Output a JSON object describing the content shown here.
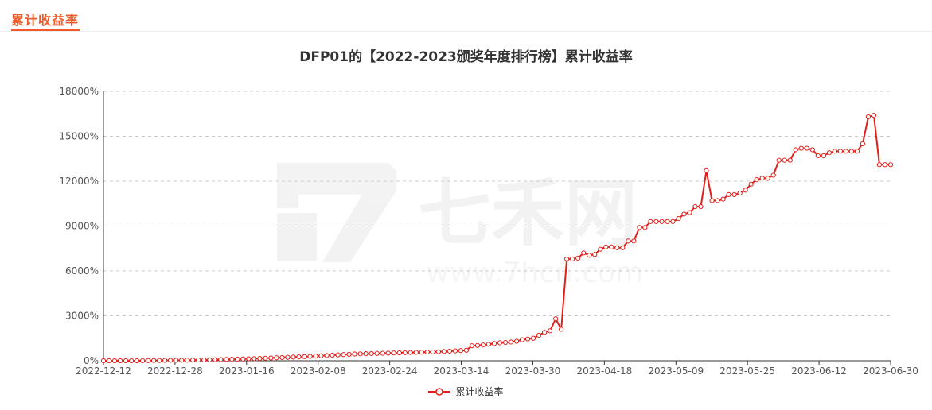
{
  "header": {
    "tab_label": "累计收益率"
  },
  "watermark": {
    "logo_text": "七禾网",
    "url_text": "www.7hcn.com"
  },
  "colors": {
    "accent": "#f05a28",
    "series": "#e0201b",
    "grid": "#cccccc"
  },
  "legend": {
    "label": "累计收益率"
  },
  "chart_data": {
    "type": "line",
    "title": "DFP01的【2022-2023颁奖年度排行榜】累计收益率",
    "xlabel": "",
    "ylabel": "",
    "ylim": [
      0,
      18000
    ],
    "y_ticks": [
      "0%",
      "3000%",
      "6000%",
      "9000%",
      "12000%",
      "15000%",
      "18000%"
    ],
    "x_ticks": [
      "2022-12-12",
      "2022-12-28",
      "2023-01-16",
      "2023-02-08",
      "2023-02-24",
      "2023-03-14",
      "2023-03-30",
      "2023-04-18",
      "2023-05-09",
      "2023-05-25",
      "2023-06-12",
      "2023-06-30"
    ],
    "grid": true,
    "legend_position": "bottom",
    "series": [
      {
        "name": "累计收益率",
        "values": [
          0,
          0,
          0,
          0,
          0,
          0,
          0,
          5,
          10,
          15,
          20,
          25,
          30,
          30,
          35,
          40,
          45,
          50,
          55,
          60,
          70,
          80,
          90,
          100,
          110,
          120,
          130,
          140,
          155,
          170,
          185,
          200,
          215,
          230,
          245,
          260,
          275,
          290,
          310,
          330,
          350,
          370,
          390,
          410,
          430,
          450,
          460,
          470,
          480,
          490,
          500,
          510,
          520,
          530,
          540,
          550,
          560,
          570,
          580,
          590,
          600,
          620,
          640,
          660,
          680,
          700,
          1000,
          1020,
          1050,
          1100,
          1150,
          1200,
          1220,
          1250,
          1300,
          1400,
          1450,
          1500,
          1700,
          1900,
          2000,
          2800,
          2100,
          6800,
          6800,
          6850,
          7200,
          7050,
          7100,
          7450,
          7600,
          7600,
          7550,
          7550,
          8000,
          8000,
          8900,
          8900,
          9300,
          9300,
          9300,
          9300,
          9300,
          9500,
          9800,
          9900,
          10300,
          10300,
          12700,
          10700,
          10700,
          10800,
          11100,
          11100,
          11200,
          11400,
          11800,
          12100,
          12200,
          12200,
          12400,
          13400,
          13400,
          13400,
          14100,
          14200,
          14200,
          14100,
          13700,
          13700,
          13900,
          14000,
          14000,
          14000,
          14000,
          14000,
          14500,
          16300,
          16400,
          13100,
          13100,
          13100
        ]
      }
    ]
  }
}
